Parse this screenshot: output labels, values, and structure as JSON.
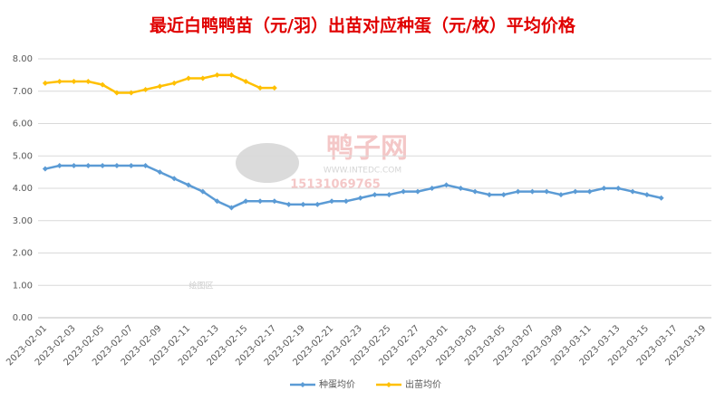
{
  "chart_data": {
    "type": "line",
    "title": "最近白鸭鸭苗（元/羽）出苗对应种蛋（元/枚）平均价格",
    "watermark": {
      "name": "鸭子网",
      "site": "WWW.INTEDC.COM",
      "phone": "15131069765",
      "area": "绘图区"
    },
    "categories": [
      "2023-02-01",
      null,
      "2023-02-03",
      null,
      "2023-02-05",
      null,
      "2023-02-07",
      null,
      "2023-02-09",
      null,
      "2023-02-11",
      null,
      "2023-02-13",
      null,
      "2023-02-15",
      null,
      "2023-02-17",
      null,
      "2023-02-19",
      null,
      "2023-02-21",
      null,
      "2023-02-23",
      null,
      "2023-02-25",
      null,
      "2023-02-27",
      null,
      "2023-03-01",
      null,
      "2023-03-03",
      null,
      "2023-03-05",
      null,
      "2023-03-07",
      null,
      "2023-03-09",
      null,
      "2023-03-11",
      null,
      "2023-03-13",
      null,
      "2023-03-15",
      null,
      "2023-03-17",
      null,
      "2023-03-19"
    ],
    "series": [
      {
        "name": "种蛋均价",
        "color": "#5b9bd5",
        "values": [
          4.6,
          4.7,
          4.7,
          4.7,
          4.7,
          4.7,
          4.7,
          4.7,
          4.5,
          4.3,
          4.1,
          3.9,
          3.6,
          3.4,
          3.6,
          3.6,
          3.6,
          3.5,
          3.5,
          3.5,
          3.6,
          3.6,
          3.7,
          3.8,
          3.8,
          3.9,
          3.9,
          4.0,
          4.1,
          4.0,
          3.9,
          3.8,
          3.8,
          3.9,
          3.9,
          3.9,
          3.8,
          3.9,
          3.9,
          4.0,
          4.0,
          3.9,
          3.8,
          3.7,
          null,
          null,
          null
        ]
      },
      {
        "name": "出苗均价",
        "color": "#ffc000",
        "values": [
          7.25,
          7.3,
          7.3,
          7.3,
          7.2,
          6.95,
          6.95,
          7.05,
          7.15,
          7.25,
          7.4,
          7.4,
          7.5,
          7.5,
          7.3,
          7.1,
          7.1,
          null,
          null,
          null,
          null,
          null,
          null,
          null,
          null,
          null,
          null,
          null,
          null,
          null,
          null,
          null,
          null,
          null,
          null,
          null,
          null,
          null,
          null,
          null,
          null,
          null,
          null,
          null,
          null,
          null,
          null
        ]
      }
    ],
    "ylim": [
      0,
      8
    ],
    "yticks": [
      {
        "value": 0,
        "label": "0.00"
      },
      {
        "value": 1,
        "label": "1.00"
      },
      {
        "value": 2,
        "label": "2.00"
      },
      {
        "value": 3,
        "label": "3.00"
      },
      {
        "value": 4,
        "label": "4.00"
      },
      {
        "value": 5,
        "label": "5.00"
      },
      {
        "value": 6,
        "label": "6.00"
      },
      {
        "value": 7,
        "label": "7.00"
      },
      {
        "value": 8,
        "label": "8.00"
      }
    ],
    "grid": true,
    "legend": "bottom"
  }
}
